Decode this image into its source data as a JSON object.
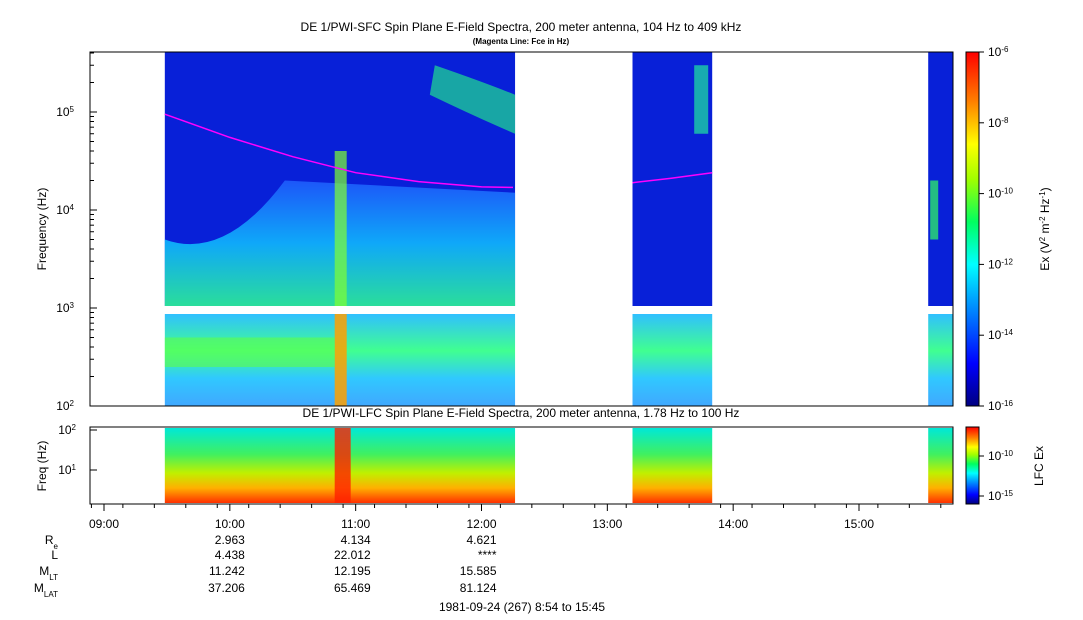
{
  "chart_data": [
    {
      "type": "heatmap",
      "title": "DE 1/PWI-SFC  Spin Plane E-Field Spectra, 200 meter antenna, 104 Hz to 409 kHz",
      "subtitle": "(Magenta Line: Fce in Hz)",
      "ylabel": "Frequency (Hz)",
      "yscale": "log",
      "ylim": [
        100,
        409000
      ],
      "yticks": [
        "10^2",
        "10^3",
        "10^4",
        "10^5"
      ],
      "colorbar": {
        "label": "Ex (V^2 m^-2 Hz^-1)",
        "scale": "log",
        "range": [
          1e-16,
          1e-06
        ],
        "ticks": [
          "10^-6",
          "10^-8",
          "10^-10",
          "10^-12",
          "10^-14",
          "10^-16"
        ]
      },
      "data_intervals_ut": [
        [
          "09:29",
          "12:16"
        ],
        [
          "13:12",
          "13:50"
        ],
        [
          "15:33",
          "15:45"
        ]
      ],
      "fce_line": {
        "name": "Fce",
        "color": "#ff00ff",
        "segments": [
          {
            "x": [
              "09:29",
              "10:00",
              "10:30",
              "11:00",
              "11:30",
              "12:00",
              "12:15"
            ],
            "y": [
              95000,
              55000,
              35000,
              24000,
              19500,
              17200,
              17000
            ]
          },
          {
            "x": [
              "13:12",
              "13:30",
              "13:50"
            ],
            "y": [
              19000,
              21000,
              24000
            ]
          }
        ]
      }
    },
    {
      "type": "heatmap",
      "title": "DE 1/PWI-LFC  Spin Plane E-Field Spectra, 200 meter antenna, 1.78 Hz to 100 Hz",
      "ylabel": "Freq (Hz)",
      "yscale": "log",
      "ylim": [
        1.78,
        100
      ],
      "yticks": [
        "10^1",
        "10^2"
      ],
      "colorbar": {
        "label": "LFC Ex",
        "scale": "log",
        "ticks": [
          "10^-10",
          "10^-15"
        ]
      },
      "data_intervals_ut": [
        [
          "09:29",
          "12:16"
        ],
        [
          "13:12",
          "13:50"
        ],
        [
          "15:33",
          "15:45"
        ]
      ]
    }
  ],
  "time_axis": {
    "ticks": [
      "09:00",
      "10:00",
      "11:00",
      "12:00",
      "13:00",
      "14:00",
      "15:00"
    ],
    "range": [
      "08:54",
      "15:45"
    ]
  },
  "ephemeris": {
    "labels": [
      "Re",
      "L",
      "MLT",
      "MLAT"
    ],
    "columns": [
      {
        "time": "10:00",
        "values": [
          "2.963",
          "4.438",
          "11.242",
          "37.206"
        ]
      },
      {
        "time": "11:00",
        "values": [
          "4.134",
          "22.012",
          "12.195",
          "65.469"
        ]
      },
      {
        "time": "12:00",
        "values": [
          "4.621",
          "****",
          "15.585",
          "81.124"
        ]
      }
    ]
  },
  "footer": "1981-09-24 (267) 8:54 to 15:45",
  "colors": {
    "fce_line": "#ff00ff",
    "background_fill": "#0000cc",
    "gap": "#ffffff"
  }
}
